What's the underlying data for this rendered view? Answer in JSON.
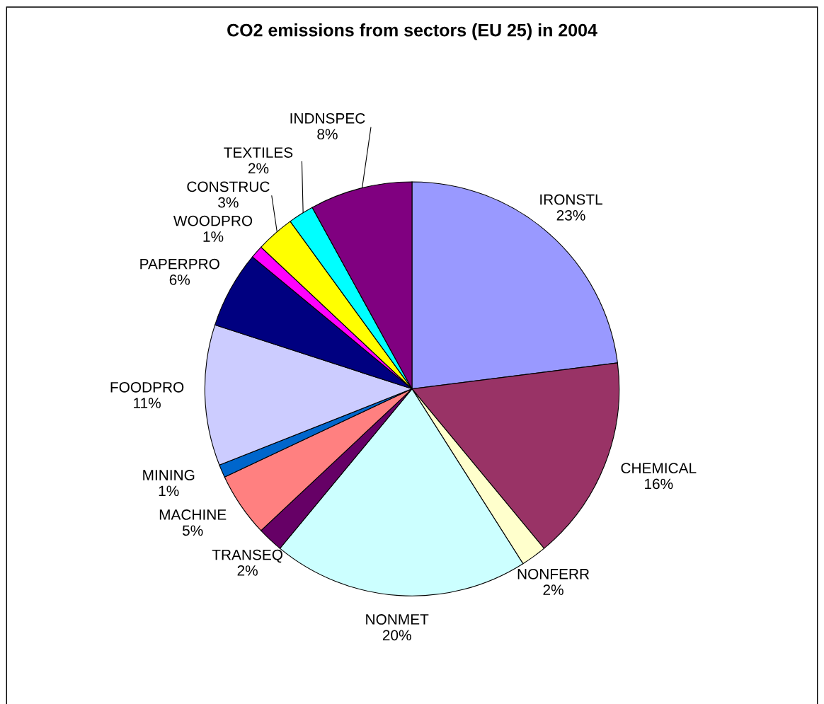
{
  "chart_data": {
    "type": "pie",
    "title": "CO2 emissions from sectors (EU 25) in 2004",
    "categories": [
      "IRONSTL",
      "CHEMICAL",
      "NONFERR",
      "NONMET",
      "TRANSEQ",
      "MACHINE",
      "MINING",
      "FOODPRO",
      "PAPERPRO",
      "WOODPRO",
      "CONSTRUC",
      "TEXTILES",
      "INDNSPEC"
    ],
    "values": [
      23,
      16,
      2,
      20,
      2,
      5,
      1,
      11,
      6,
      1,
      3,
      2,
      8
    ],
    "colors": [
      "#9999ff",
      "#993366",
      "#ffffcc",
      "#ccffff",
      "#660066",
      "#ff8080",
      "#0066cc",
      "#ccccff",
      "#000080",
      "#ff00ff",
      "#ffff00",
      "#00ffff",
      "#800080"
    ],
    "value_labels": [
      "23%",
      "16%",
      "2%",
      "20%",
      "2%",
      "5%",
      "1%",
      "11%",
      "6%",
      "1%",
      "3%",
      "2%",
      "8%"
    ],
    "legend": false
  }
}
